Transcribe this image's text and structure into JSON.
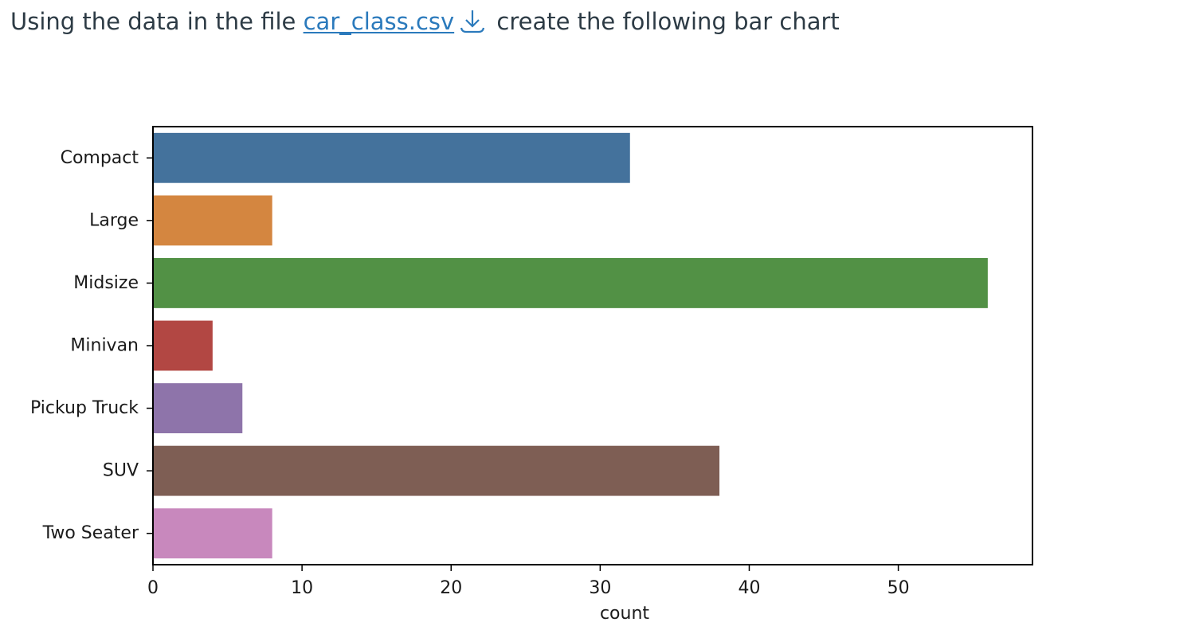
{
  "instruction": {
    "prefix": "Using the data in the file ",
    "link_text": "car_class.csv",
    "suffix": " create the following bar chart",
    "download_icon": "download-arrow-icon"
  },
  "chart_data": {
    "type": "bar",
    "orientation": "horizontal",
    "categories": [
      "Compact",
      "Large",
      "Midsize",
      "Minivan",
      "Pickup Truck",
      "SUV",
      "Two Seater"
    ],
    "values": [
      32,
      8,
      56,
      4,
      6,
      38,
      8
    ],
    "colors": [
      "#44729c",
      "#d48640",
      "#529145",
      "#b24743",
      "#8e74aa",
      "#7e5e54",
      "#c888bd"
    ],
    "xlabel": "count",
    "ylabel": "",
    "xlim": [
      0,
      59
    ],
    "xticks": [
      0,
      10,
      20,
      30,
      40,
      50
    ],
    "grid": false
  }
}
